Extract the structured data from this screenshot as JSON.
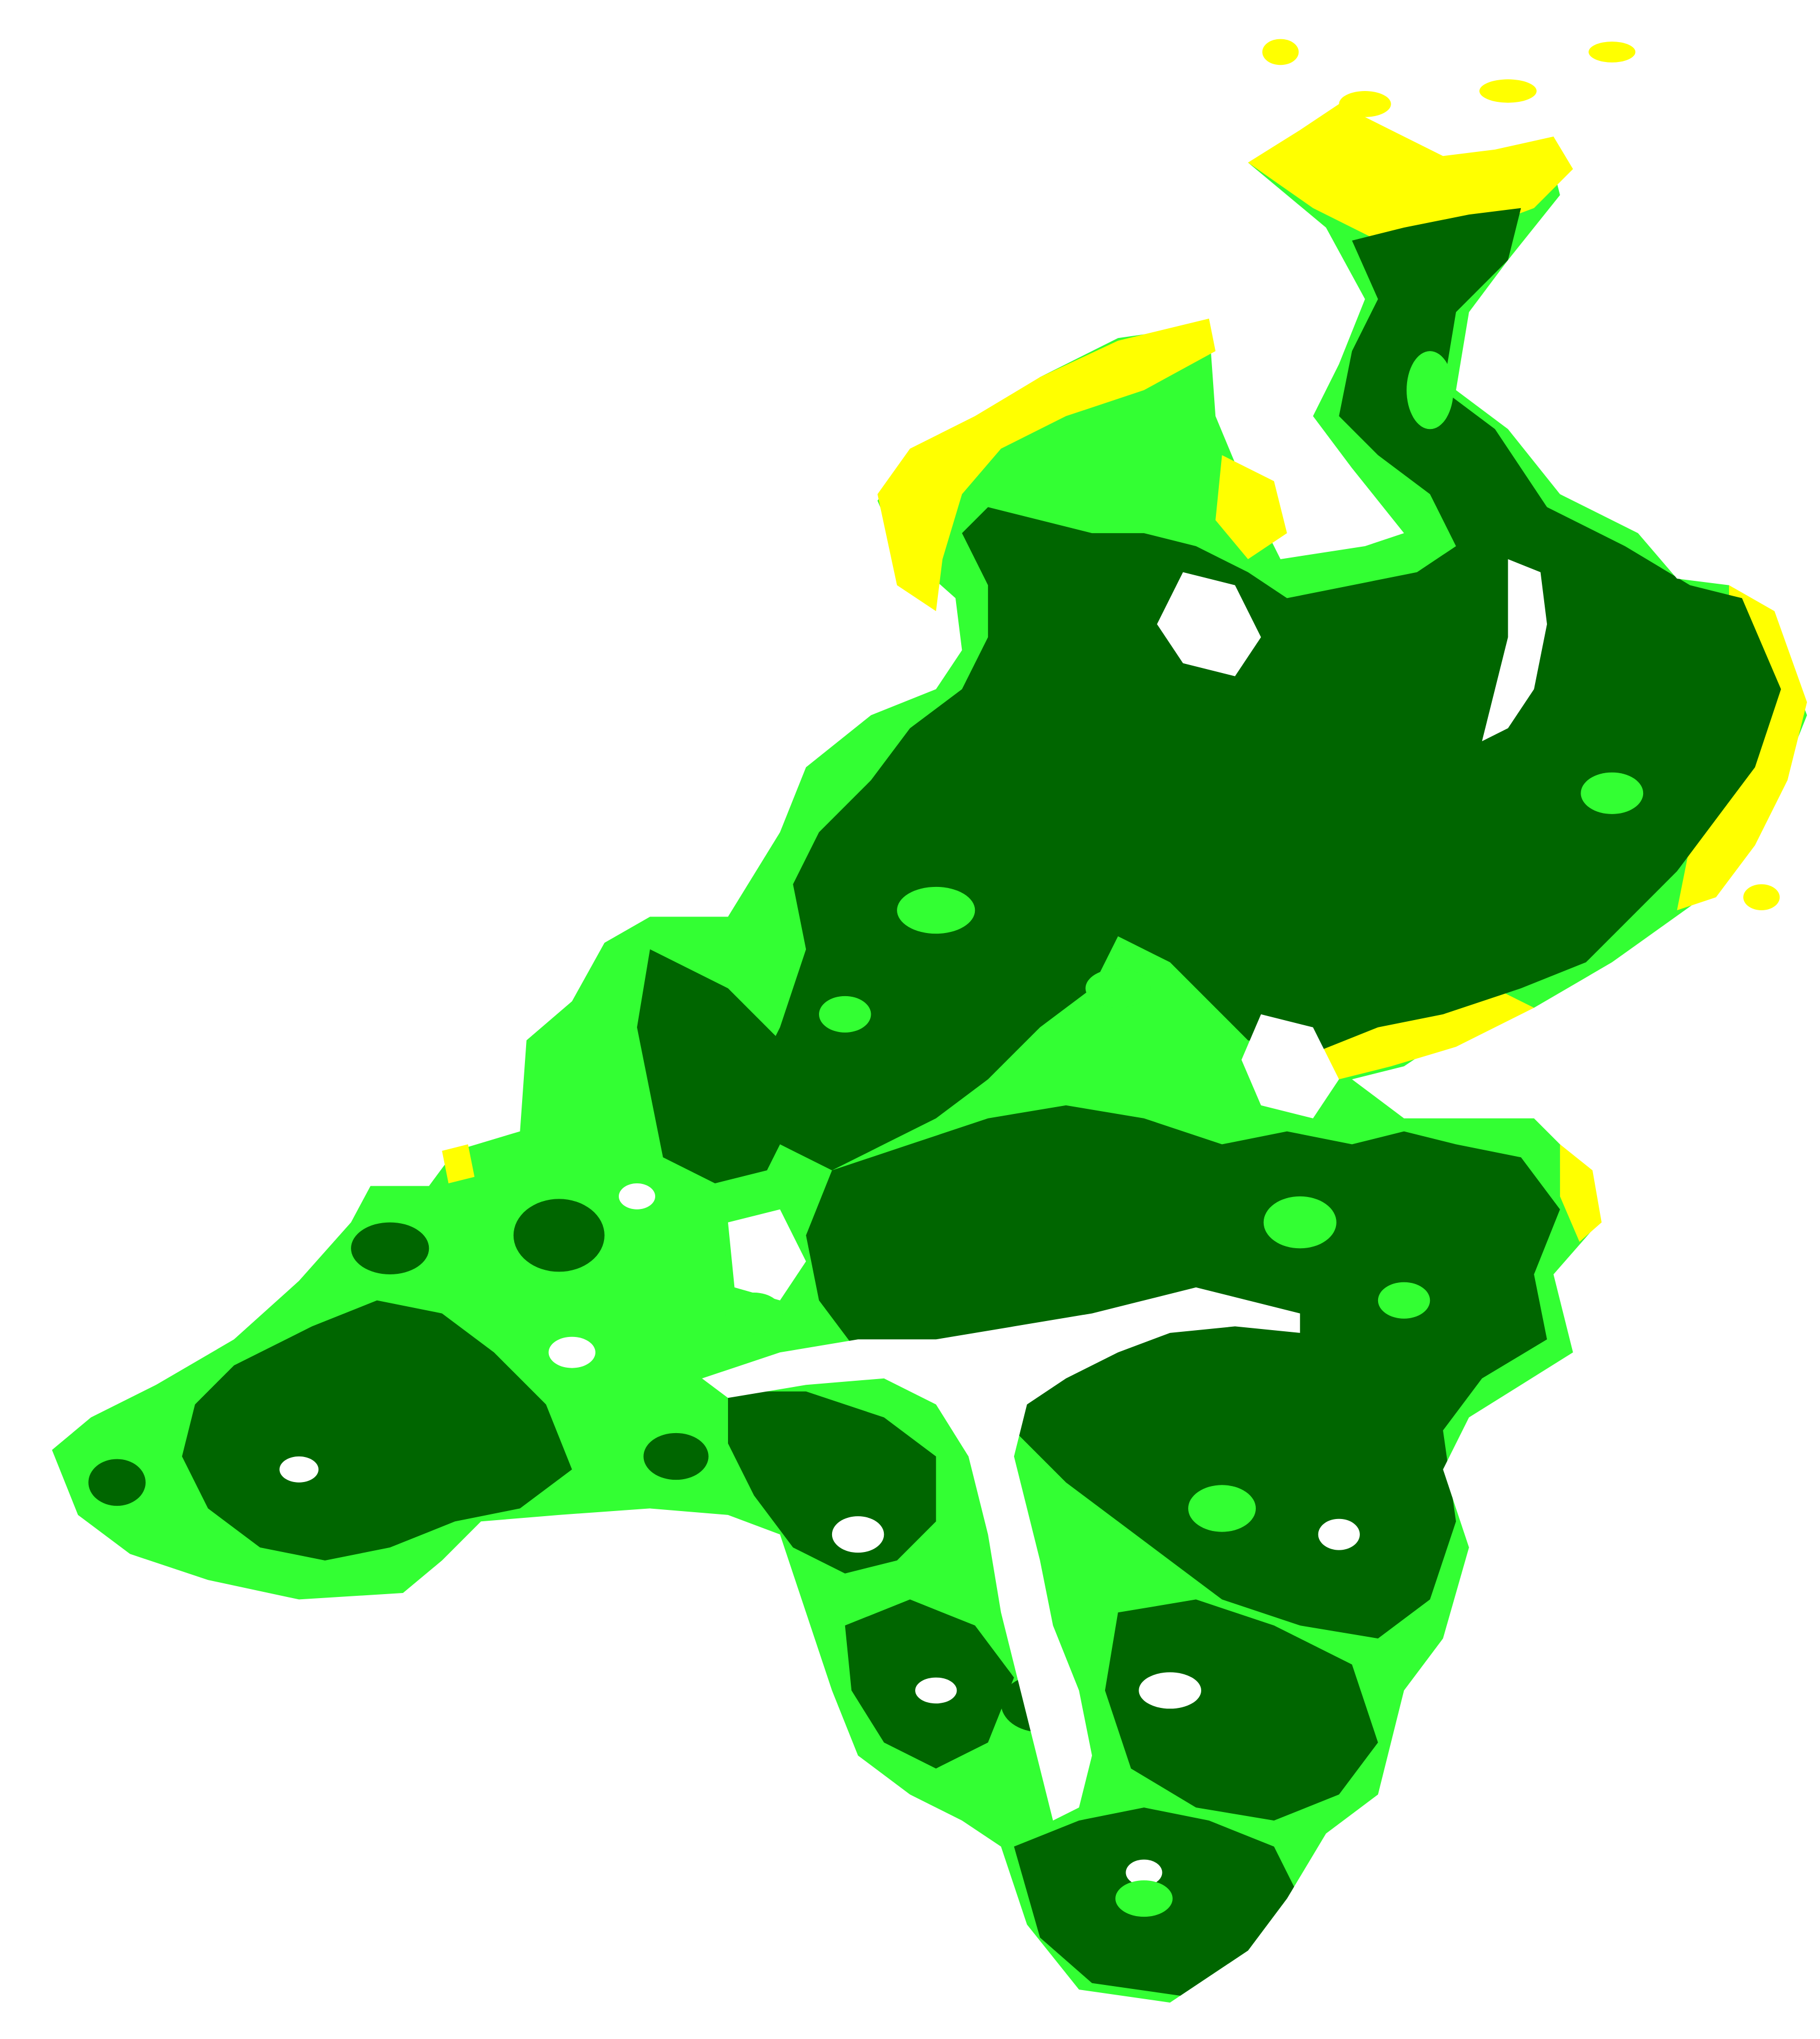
{
  "map": {
    "background_color": "#ffffff",
    "classes": [
      {
        "key": "dense",
        "color": "#006600"
      },
      {
        "key": "moderate",
        "color": "#33ff33"
      },
      {
        "key": "sparse",
        "color": "#ffff00"
      }
    ]
  }
}
